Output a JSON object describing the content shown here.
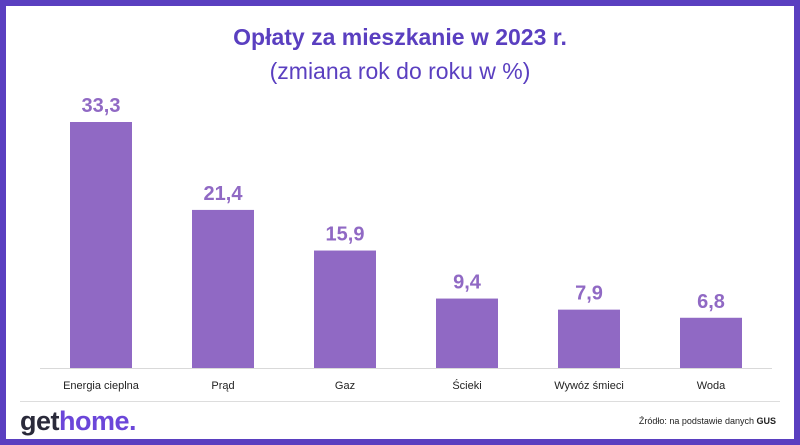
{
  "header": {
    "title": "Opłaty za mieszkanie w 2023 r.",
    "subtitle": "(zmiana rok do roku w %)"
  },
  "footer": {
    "logo_get": "get",
    "logo_home": "home",
    "logo_dot": ".",
    "source_prefix": "Źródło: na podstawie danych",
    "source_bold": "GUS"
  },
  "colors": {
    "bar": "#9069c4",
    "value_label": "#9069c4",
    "title": "#5a3fc0",
    "frame": "#5a3fc0"
  },
  "chart_data": {
    "type": "bar",
    "title": "Opłaty za mieszkanie w 2023 r.",
    "subtitle": "(zmiana rok do roku w %)",
    "categories": [
      "Energia cieplna",
      "Prąd",
      "Gaz",
      "Ścieki",
      "Wywóz śmieci",
      "Woda"
    ],
    "values": [
      33.3,
      21.4,
      15.9,
      9.4,
      7.9,
      6.8
    ],
    "value_labels": [
      "33,3",
      "21,4",
      "15,9",
      "9,4",
      "7,9",
      "6,8"
    ],
    "xlabel": "",
    "ylabel": "",
    "ylim": [
      0,
      33.3
    ],
    "grid": false,
    "legend": "none"
  }
}
